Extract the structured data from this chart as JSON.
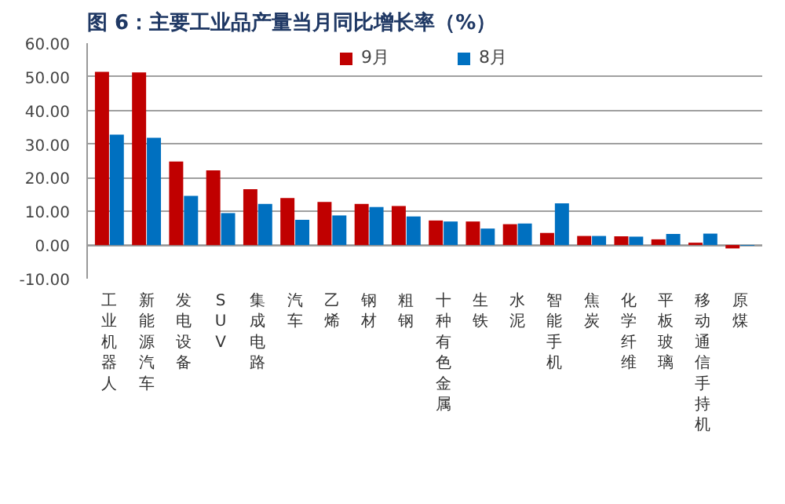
{
  "chart_data": {
    "type": "bar",
    "title": "图 6：主要工业品产量当月同比增长率（%）",
    "categories": [
      "工业机器人",
      "新能源汽车",
      "发电设备",
      "SUV",
      "集成电路",
      "汽车",
      "乙烯",
      "钢材",
      "粗钢",
      "十种有色金属",
      "生铁",
      "水泥",
      "智能手机",
      "焦炭",
      "化学纤维",
      "平板玻璃",
      "移动通信手持机",
      "原煤"
    ],
    "series": [
      {
        "name": "9月",
        "color": "#c00000",
        "values": [
          51.5,
          51.3,
          24.8,
          22.2,
          16.6,
          14.0,
          12.8,
          12.2,
          11.6,
          7.3,
          7.0,
          6.2,
          3.6,
          2.7,
          2.6,
          1.7,
          0.7,
          -1.0
        ]
      },
      {
        "name": "8月",
        "color": "#0070c0",
        "values": [
          32.8,
          31.9,
          14.6,
          9.5,
          12.2,
          7.5,
          8.8,
          11.3,
          8.5,
          7.0,
          4.9,
          6.4,
          12.4,
          2.7,
          2.5,
          3.3,
          3.4,
          -0.2
        ]
      }
    ],
    "ylim": [
      -10,
      60
    ],
    "yticks": [
      {
        "value": -10,
        "label": "-10.00"
      },
      {
        "value": 0,
        "label": "0.00"
      },
      {
        "value": 10,
        "label": "10.00"
      },
      {
        "value": 20,
        "label": "20.00"
      },
      {
        "value": 30,
        "label": "30.00"
      },
      {
        "value": 40,
        "label": "40.00"
      },
      {
        "value": 50,
        "label": "50.00"
      },
      {
        "value": 60,
        "label": "60.00"
      }
    ],
    "grid": "y",
    "legend": "top"
  }
}
